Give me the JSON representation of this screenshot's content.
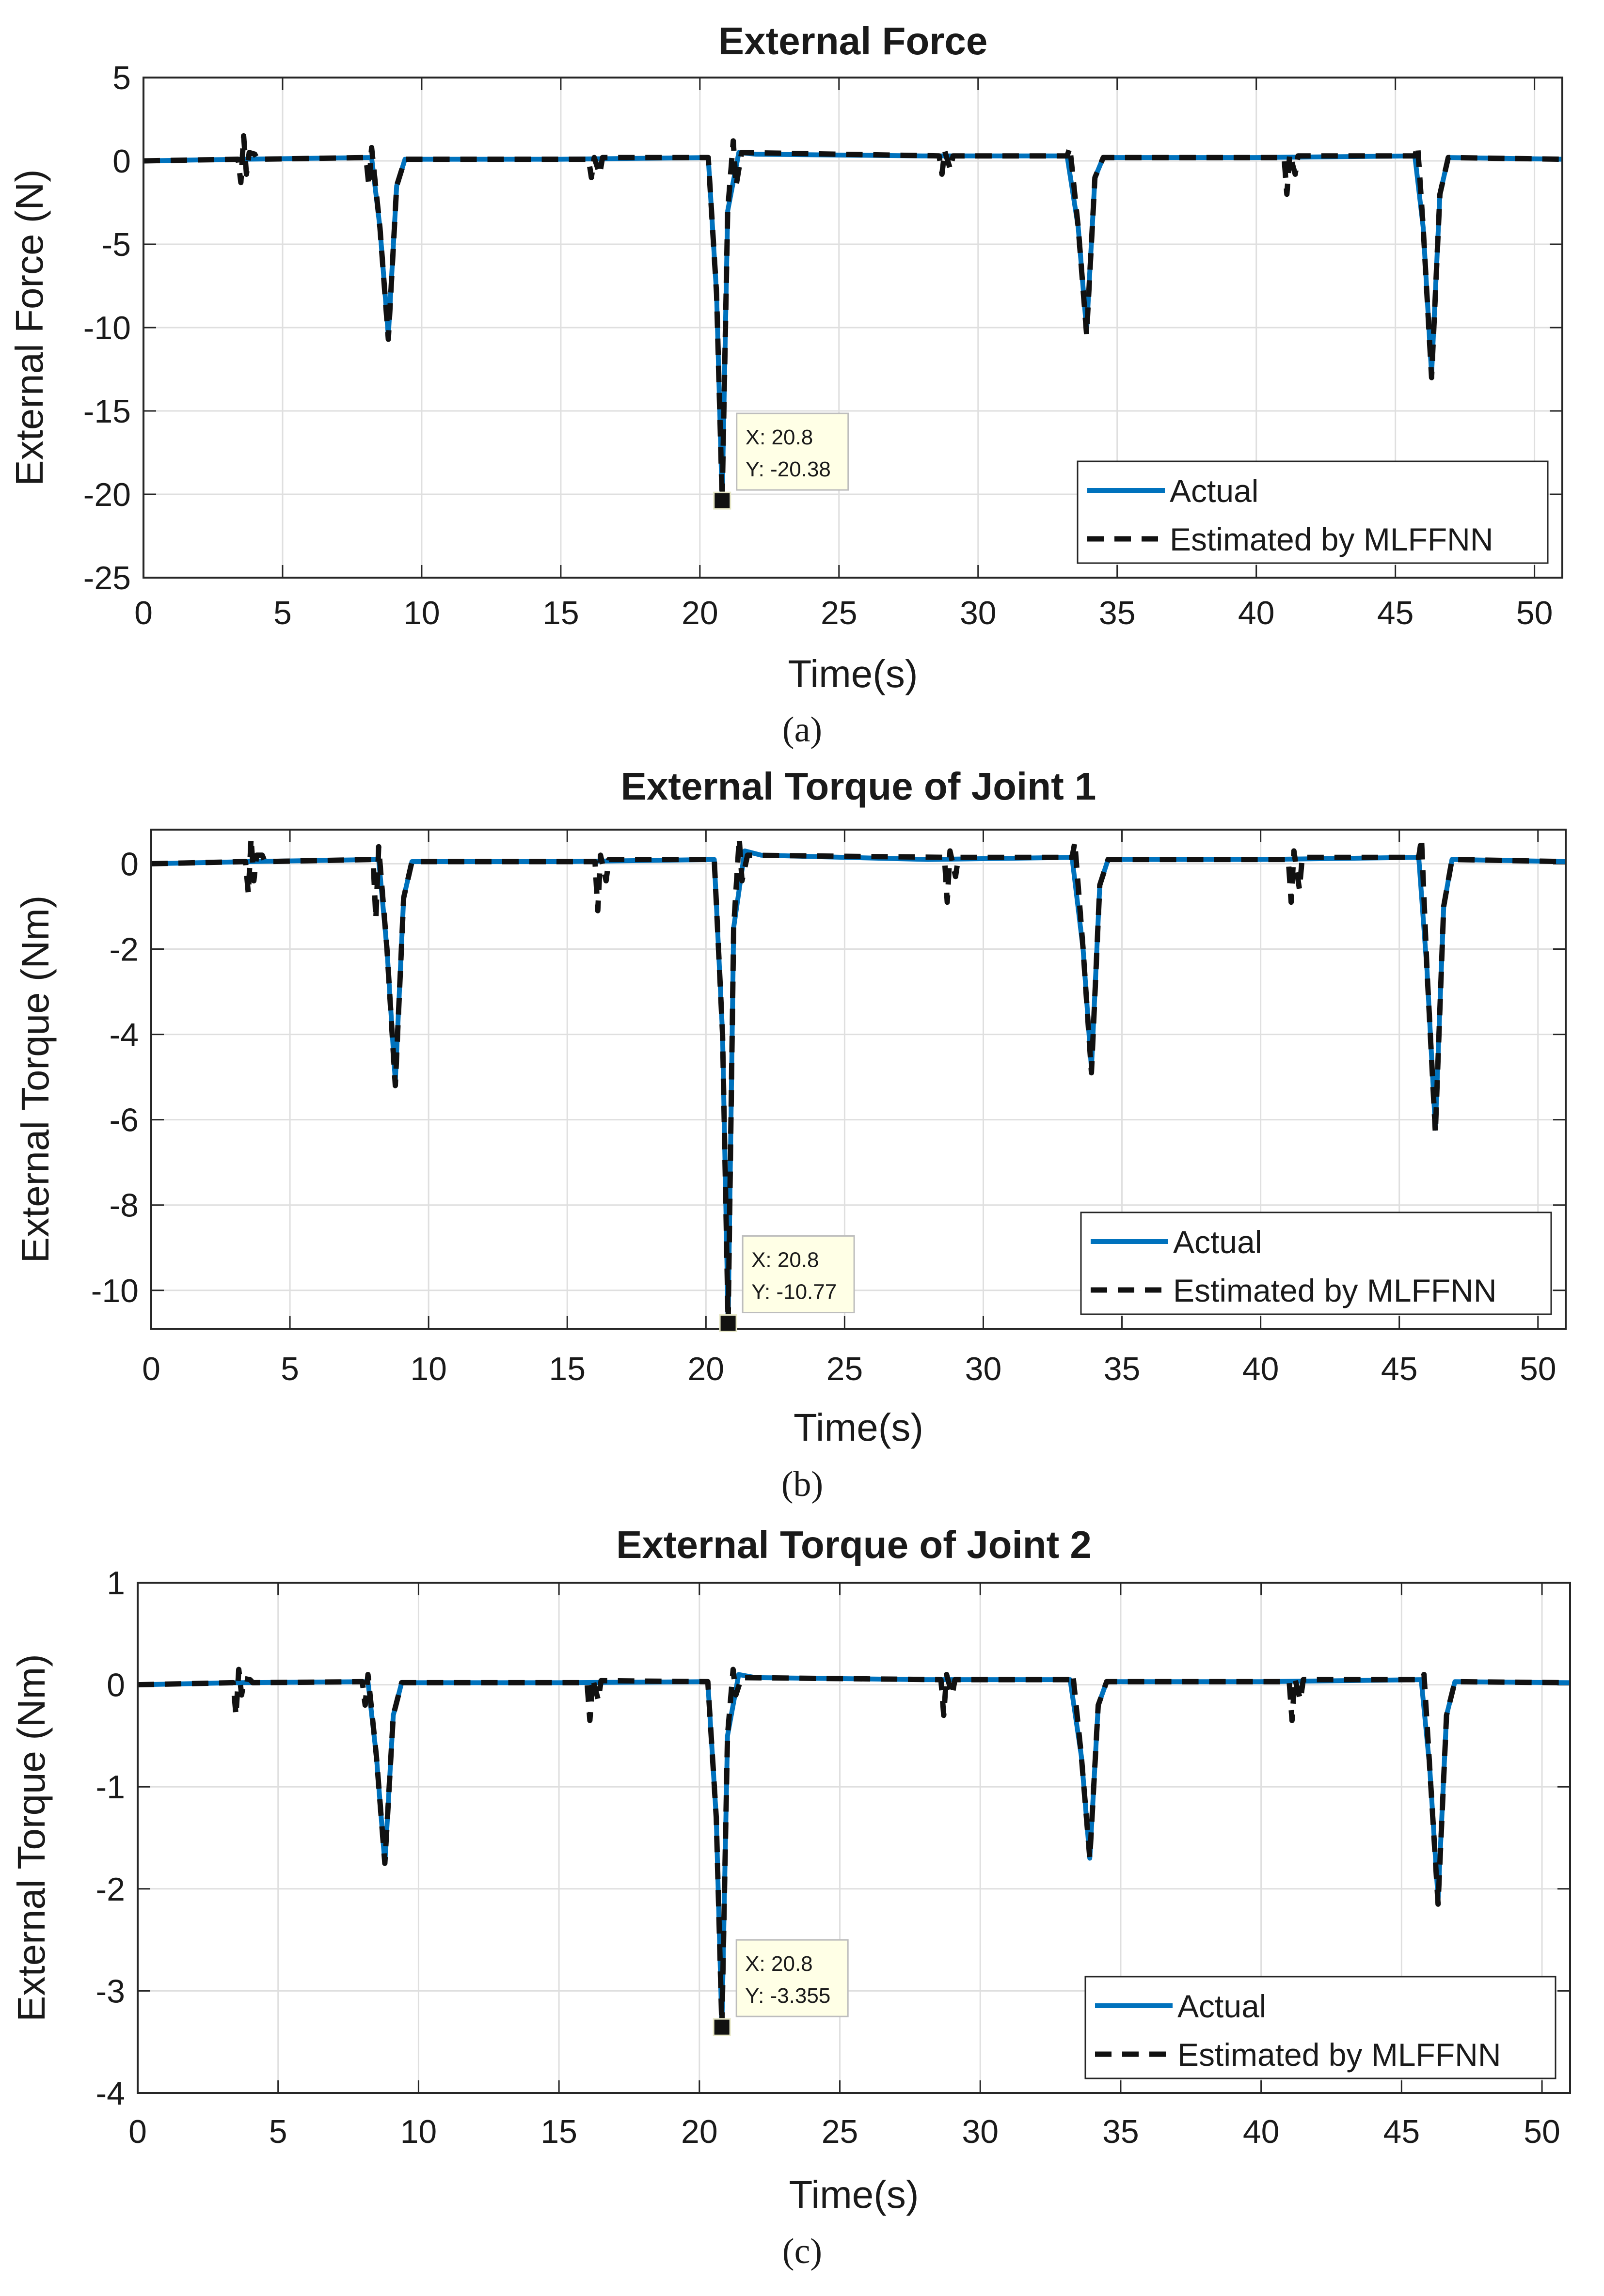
{
  "chart_data": [
    {
      "type": "line",
      "title": "External Force",
      "xlabel": "Time(s)",
      "ylabel": "External Force (N)",
      "caption": "(a)",
      "xlim": [
        0,
        51
      ],
      "ylim": [
        -25,
        5
      ],
      "xticks": [
        0,
        5,
        10,
        15,
        20,
        25,
        30,
        35,
        40,
        45,
        50
      ],
      "yticks": [
        5,
        0,
        -5,
        -10,
        -15,
        -20,
        -25
      ],
      "grid": true,
      "legend": {
        "position": "bottom-right",
        "entries": [
          "Actual",
          "Estimated by MLFFNN"
        ]
      },
      "datatip": {
        "x": 20.8,
        "y": -20.38,
        "x_label": "X: 20.8",
        "y_label": "Y: -20.38"
      },
      "series": [
        {
          "name": "Actual",
          "color": "#0072BD",
          "style": "solid",
          "x": [
            0,
            3.5,
            8.2,
            8.5,
            8.8,
            9.1,
            9.4,
            15,
            20.3,
            20.6,
            20.8,
            21.0,
            21.4,
            22,
            28,
            33.2,
            33.6,
            33.9,
            34.2,
            34.5,
            40,
            45.7,
            46.0,
            46.3,
            46.6,
            46.9,
            51
          ],
          "y": [
            0,
            0.1,
            0.2,
            -4,
            -10.5,
            -1.5,
            0.1,
            0.1,
            0.2,
            -8,
            -20.38,
            -3,
            0.5,
            0.4,
            0.3,
            0.3,
            -4,
            -10.2,
            -1,
            0.2,
            0.2,
            0.3,
            -4,
            -12.8,
            -2,
            0.2,
            0.1
          ]
        },
        {
          "name": "Estimated by MLFFNN",
          "color": "#111111",
          "style": "dashed",
          "x": [
            0,
            3.4,
            3.5,
            3.6,
            3.7,
            3.8,
            4.0,
            4.1,
            8.0,
            8.1,
            8.2,
            8.5,
            8.8,
            9.1,
            9.4,
            16.0,
            16.1,
            16.2,
            16.4,
            16.5,
            20.3,
            20.6,
            20.8,
            21.0,
            21.2,
            21.3,
            21.5,
            28.6,
            28.7,
            28.8,
            29.0,
            29.1,
            33.2,
            33.3,
            33.6,
            33.9,
            34.2,
            34.5,
            41.0,
            41.1,
            41.2,
            41.4,
            41.5,
            45.7,
            45.8,
            46.0,
            46.3,
            46.6,
            46.9,
            51
          ],
          "y": [
            0,
            0.1,
            -1.3,
            1.5,
            -0.8,
            0.5,
            0.4,
            0.1,
            0.2,
            -1.5,
            0.8,
            -4,
            -10.7,
            -1.5,
            0.1,
            0.1,
            -1,
            0.2,
            -0.8,
            0.2,
            0.2,
            -8,
            -20.38,
            -3,
            1.2,
            -1.5,
            0.5,
            0.3,
            -0.8,
            0.6,
            -0.5,
            0.3,
            0.3,
            0.8,
            -4,
            -10.4,
            -1,
            0.2,
            0.2,
            -2,
            0.4,
            -0.8,
            0.3,
            0.3,
            0.9,
            -4,
            -13,
            -2,
            0.2,
            0.1
          ]
        }
      ]
    },
    {
      "type": "line",
      "title": "External Torque of Joint 1",
      "xlabel": "Time(s)",
      "ylabel": "External Torque (Nm)",
      "caption": "(b)",
      "xlim": [
        0,
        51
      ],
      "ylim": [
        -10.9,
        0.8
      ],
      "xticks": [
        0,
        5,
        10,
        15,
        20,
        25,
        30,
        35,
        40,
        45,
        50
      ],
      "yticks": [
        0,
        -2,
        -4,
        -6,
        -8,
        -10
      ],
      "grid": true,
      "legend": {
        "position": "bottom-right",
        "entries": [
          "Actual",
          "Estimated by MLFFNN"
        ]
      },
      "datatip": {
        "x": 20.8,
        "y": -10.77,
        "x_label": "X: 20.8",
        "y_label": "Y: -10.77"
      },
      "series": [
        {
          "name": "Actual",
          "color": "#0072BD",
          "style": "solid",
          "x": [
            0,
            3.5,
            8.2,
            8.5,
            8.8,
            9.1,
            9.4,
            15,
            20.3,
            20.6,
            20.8,
            21.0,
            21.4,
            22,
            28,
            33.2,
            33.6,
            33.9,
            34.2,
            34.5,
            40,
            45.7,
            46.0,
            46.3,
            46.6,
            46.9,
            51
          ],
          "y": [
            0,
            0.05,
            0.1,
            -2,
            -5.1,
            -0.8,
            0.05,
            0.05,
            0.1,
            -4,
            -10.77,
            -1.5,
            0.3,
            0.2,
            0.1,
            0.15,
            -2,
            -4.8,
            -0.5,
            0.1,
            0.1,
            0.15,
            -2.5,
            -6.2,
            -1,
            0.1,
            0.05
          ]
        },
        {
          "name": "Estimated by MLFFNN",
          "color": "#111111",
          "style": "dashed",
          "x": [
            0,
            3.4,
            3.5,
            3.6,
            3.7,
            3.8,
            4.0,
            4.1,
            8.0,
            8.1,
            8.2,
            8.5,
            8.8,
            9.1,
            9.4,
            16.0,
            16.1,
            16.2,
            16.4,
            16.5,
            20.3,
            20.6,
            20.8,
            21.0,
            21.2,
            21.3,
            21.5,
            28.6,
            28.7,
            28.8,
            29.0,
            29.1,
            33.2,
            33.3,
            33.6,
            33.9,
            34.2,
            34.5,
            41.0,
            41.1,
            41.2,
            41.4,
            41.5,
            45.7,
            45.8,
            46.0,
            46.3,
            46.6,
            46.9,
            51
          ],
          "y": [
            0,
            0.05,
            -0.7,
            0.6,
            -0.4,
            0.2,
            0.2,
            0.05,
            0.1,
            -1.3,
            0.4,
            -2,
            -5.2,
            -0.8,
            0.05,
            0.05,
            -1.1,
            0.2,
            -0.4,
            0.1,
            0.1,
            -4,
            -10.77,
            -1.5,
            0.6,
            -0.4,
            0.2,
            0.15,
            -0.9,
            0.3,
            -0.3,
            0.15,
            0.15,
            0.5,
            -2,
            -4.9,
            -0.5,
            0.1,
            0.1,
            -0.9,
            0.3,
            -0.6,
            0.15,
            0.15,
            0.6,
            -2.5,
            -6.3,
            -1,
            0.1,
            0.05
          ]
        }
      ]
    },
    {
      "type": "line",
      "title": "External Torque of Joint 2",
      "xlabel": "Time(s)",
      "ylabel": "External Torque (Nm)",
      "caption": "(c)",
      "xlim": [
        0,
        51
      ],
      "ylim": [
        -4,
        1
      ],
      "xticks": [
        0,
        5,
        10,
        15,
        20,
        25,
        30,
        35,
        40,
        45,
        50
      ],
      "yticks": [
        1,
        0,
        -1,
        -2,
        -3,
        -4
      ],
      "grid": true,
      "legend": {
        "position": "bottom-right",
        "entries": [
          "Actual",
          "Estimated by MLFFNN"
        ]
      },
      "datatip": {
        "x": 20.8,
        "y": -3.355,
        "x_label": "X: 20.8",
        "y_label": "Y: -3.355"
      },
      "series": [
        {
          "name": "Actual",
          "color": "#0072BD",
          "style": "solid",
          "x": [
            0,
            3.5,
            8.2,
            8.5,
            8.8,
            9.1,
            9.4,
            15,
            20.3,
            20.6,
            20.8,
            21.0,
            21.4,
            22,
            28,
            33.2,
            33.6,
            33.9,
            34.2,
            34.5,
            40,
            45.7,
            46.0,
            46.3,
            46.6,
            46.9,
            51
          ],
          "y": [
            0,
            0.02,
            0.03,
            -0.7,
            -1.75,
            -0.3,
            0.02,
            0.02,
            0.03,
            -1.3,
            -3.355,
            -0.5,
            0.1,
            0.07,
            0.05,
            0.05,
            -0.7,
            -1.7,
            -0.2,
            0.03,
            0.03,
            0.05,
            -0.8,
            -2.1,
            -0.3,
            0.03,
            0.02
          ]
        },
        {
          "name": "Estimated by MLFFNN",
          "color": "#111111",
          "style": "dashed",
          "x": [
            0,
            3.4,
            3.5,
            3.6,
            3.7,
            3.8,
            4.0,
            4.1,
            8.0,
            8.1,
            8.2,
            8.5,
            8.8,
            9.1,
            9.4,
            16.0,
            16.1,
            16.2,
            16.4,
            16.5,
            20.3,
            20.6,
            20.8,
            21.0,
            21.2,
            21.3,
            21.5,
            28.6,
            28.7,
            28.8,
            29.0,
            29.1,
            33.2,
            33.3,
            33.6,
            33.9,
            34.2,
            34.5,
            41.0,
            41.1,
            41.2,
            41.4,
            41.5,
            45.7,
            45.8,
            46.0,
            46.3,
            46.6,
            46.9,
            51
          ],
          "y": [
            0,
            0.02,
            -0.3,
            0.15,
            -0.1,
            0.06,
            0.05,
            0.02,
            0.03,
            -0.2,
            0.1,
            -0.7,
            -1.75,
            -0.3,
            0.02,
            0.02,
            -0.35,
            0.06,
            -0.15,
            0.04,
            0.03,
            -1.3,
            -3.355,
            -0.5,
            0.15,
            -0.1,
            0.07,
            0.05,
            -0.3,
            0.1,
            -0.1,
            0.05,
            0.05,
            0.1,
            -0.7,
            -1.7,
            -0.2,
            0.03,
            0.03,
            -0.35,
            0.06,
            -0.15,
            0.05,
            0.05,
            0.1,
            -0.8,
            -2.15,
            -0.3,
            0.03,
            0.02
          ]
        }
      ]
    }
  ]
}
